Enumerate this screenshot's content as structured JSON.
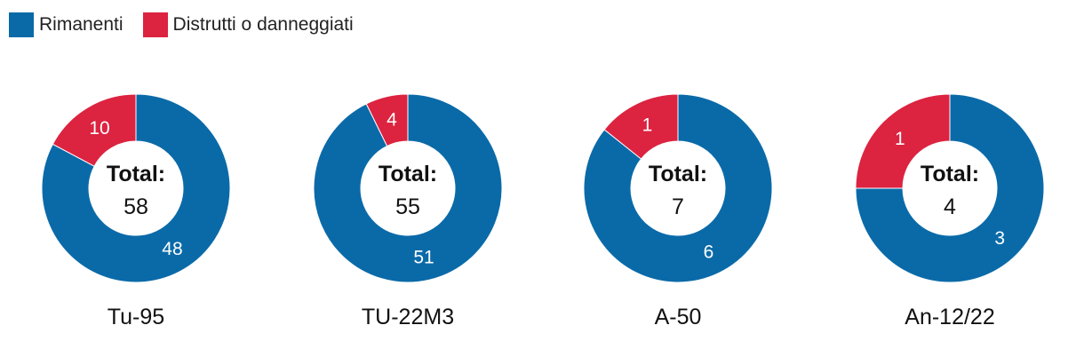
{
  "legend": [
    {
      "label": "Rimanenti",
      "color": "#0a6aa8"
    },
    {
      "label": "Distrutti o danneggiati",
      "color": "#dc2340"
    }
  ],
  "total_label": "Total:",
  "chart_data": {
    "type": "donut",
    "series_names": [
      "Rimanenti",
      "Distrutti o danneggiati"
    ],
    "charts": [
      {
        "name": "Tu-95",
        "total": 58,
        "rimanenti": 48,
        "distrutti": 10
      },
      {
        "name": "TU-22M3",
        "total": 55,
        "rimanenti": 51,
        "distrutti": 4
      },
      {
        "name": "A-50",
        "total": 7,
        "rimanenti": 6,
        "distrutti": 1
      },
      {
        "name": "An-12/22",
        "total": 4,
        "rimanenti": 3,
        "distrutti": 1
      }
    ]
  }
}
